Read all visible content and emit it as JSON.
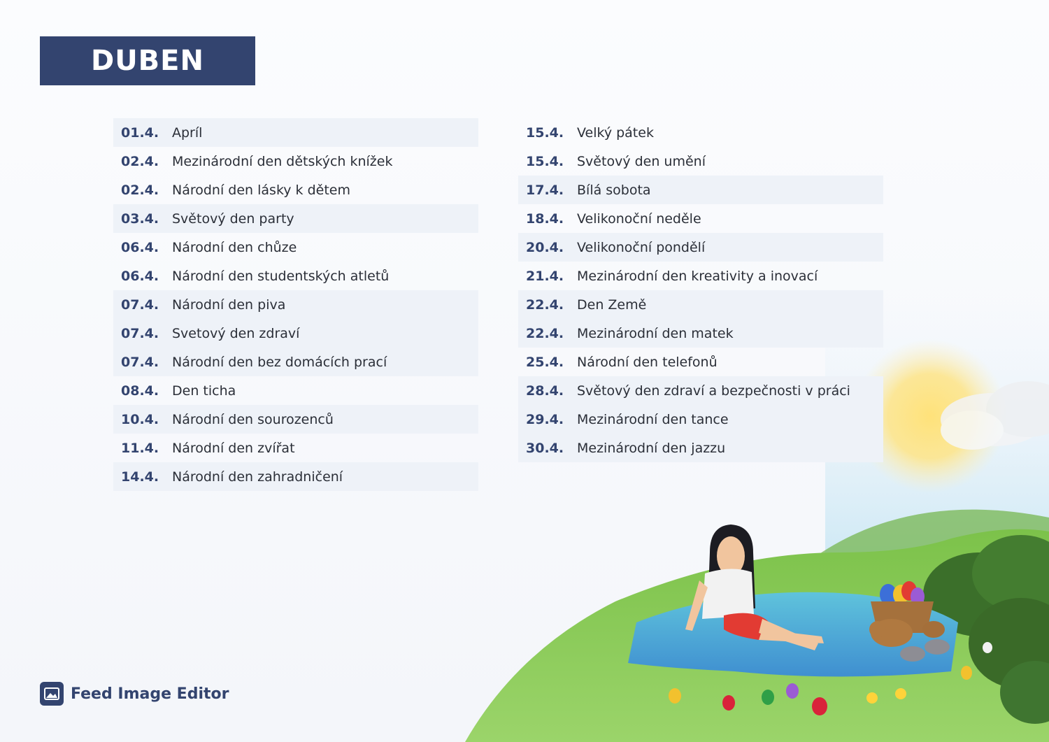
{
  "header": {
    "title": "DUBEN"
  },
  "brand": {
    "name": "Feed Image Editor",
    "icon": "image-icon",
    "color": "#33446f"
  },
  "left_column": [
    {
      "date": "01.4.",
      "name": "Apríl",
      "shaded": true
    },
    {
      "date": "02.4.",
      "name": "Mezinárodní den dětských knížek",
      "shaded": false
    },
    {
      "date": "02.4.",
      "name": "Národní den lásky k dětem",
      "shaded": false
    },
    {
      "date": "03.4.",
      "name": "Světový den party",
      "shaded": true
    },
    {
      "date": "06.4.",
      "name": "Národní den chůze",
      "shaded": false
    },
    {
      "date": "06.4.",
      "name": "Národní den studentských atletů",
      "shaded": false
    },
    {
      "date": "07.4.",
      "name": "Národní den piva",
      "shaded": true
    },
    {
      "date": "07.4.",
      "name": "Svetový den zdraví",
      "shaded": true
    },
    {
      "date": "07.4.",
      "name": "Národní den bez domácích prací",
      "shaded": true
    },
    {
      "date": "08.4.",
      "name": "Den ticha",
      "shaded": false
    },
    {
      "date": "10.4.",
      "name": "Národní den sourozenců",
      "shaded": true
    },
    {
      "date": "11.4.",
      "name": "Národní den zvířat",
      "shaded": false
    },
    {
      "date": "14.4.",
      "name": "Národní den zahradničení",
      "shaded": true
    }
  ],
  "right_column": [
    {
      "date": "15.4.",
      "name": "Velký pátek",
      "shaded": false
    },
    {
      "date": "15.4.",
      "name": "Světový den umění",
      "shaded": false
    },
    {
      "date": "17.4.",
      "name": "Bílá sobota",
      "shaded": true
    },
    {
      "date": "18.4.",
      "name": "Velikonoční neděle",
      "shaded": false
    },
    {
      "date": "20.4.",
      "name": "Velikonoční pondělí",
      "shaded": true
    },
    {
      "date": "21.4.",
      "name": "Mezinárodní den kreativity a inovací",
      "shaded": false
    },
    {
      "date": "22.4.",
      "name": "Den Země",
      "shaded": true
    },
    {
      "date": "22.4.",
      "name": "Mezinárodní den matek",
      "shaded": true
    },
    {
      "date": "25.4.",
      "name": "Národní den telefonů",
      "shaded": false
    },
    {
      "date": "28.4.",
      "name": "Světový den zdraví a bezpečnosti v práci",
      "shaded": true
    },
    {
      "date": "29.4.",
      "name": "Mezinárodní den tance",
      "shaded": true
    },
    {
      "date": "30.4.",
      "name": "Mezinárodní den jazzu",
      "shaded": true
    }
  ],
  "colors": {
    "accent": "#33446f",
    "row_shade": "#eef2f8",
    "text": "#2b2f38"
  }
}
